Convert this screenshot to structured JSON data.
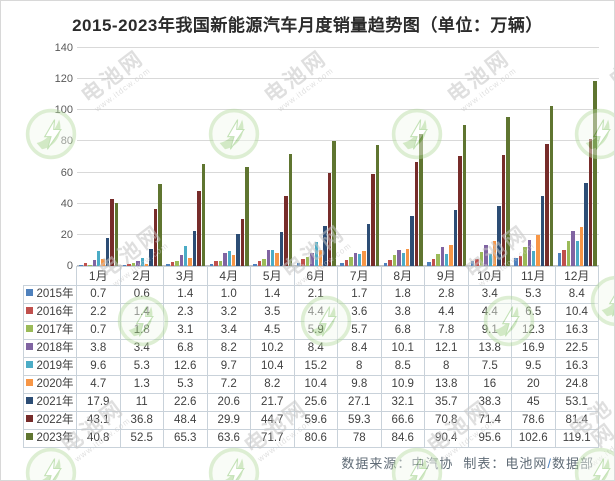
{
  "title": "2015-2023年我国新能源汽车月度销量趋势图（单位：万辆）",
  "watermark": {
    "brand": "电池网",
    "url": "www.itdcw.com"
  },
  "footer": {
    "source": "数据来源：中汽协",
    "maker": "制表：电池网",
    "slash": "/",
    "dept": "数据部"
  },
  "colors": {
    "grid": "#d9d9d9",
    "axis": "#bfbfbf",
    "table_border": "#c9d2da",
    "title_text": "#2b2b2b",
    "body_text": "#404040",
    "tick_text": "#595959",
    "footer_text": "#5f6b76",
    "footer_slash": "#4a7ebb",
    "watermark_gray": "#c6c6c6",
    "watermark_green": "#8cc63f"
  },
  "chart_data": {
    "type": "bar",
    "title": "2015-2023年我国新能源汽车月度销量趋势图（单位：万辆）",
    "unit": "万辆",
    "xlabel": "",
    "ylabel": "",
    "ylim": [
      0,
      140
    ],
    "yticks": [
      0,
      20,
      40,
      60,
      80,
      100,
      120,
      140
    ],
    "grid": true,
    "legend_position": "data-table-left",
    "categories": [
      "1月",
      "2月",
      "3月",
      "4月",
      "5月",
      "6月",
      "7月",
      "8月",
      "9月",
      "10月",
      "11月",
      "12月"
    ],
    "series": [
      {
        "name": "2015年",
        "color": "#4F81BD",
        "values": [
          0.7,
          0.6,
          1.4,
          1.0,
          1.4,
          2.1,
          1.7,
          1.8,
          2.8,
          3.4,
          5.3,
          8.4
        ],
        "display": [
          "0.7",
          "0.6",
          "1.4",
          "1.0",
          "1.4",
          "2.1",
          "1.7",
          "1.8",
          "2.8",
          "3.4",
          "5.3",
          "8.4"
        ]
      },
      {
        "name": "2016年",
        "color": "#C0504D",
        "values": [
          2.2,
          1.4,
          2.3,
          3.2,
          3.5,
          4.4,
          3.6,
          3.8,
          4.4,
          4.4,
          6.5,
          10.4
        ],
        "display": [
          "2.2",
          "1.4",
          "2.3",
          "3.2",
          "3.5",
          "4.4",
          "3.6",
          "3.8",
          "4.4",
          "4.4",
          "6.5",
          "10.4"
        ]
      },
      {
        "name": "2017年",
        "color": "#9BBB59",
        "values": [
          0.7,
          1.8,
          3.1,
          3.4,
          4.5,
          5.9,
          5.7,
          6.8,
          7.8,
          9.1,
          12.3,
          16.3
        ],
        "display": [
          "0.7",
          "1.8",
          "3.1",
          "3.4",
          "4.5",
          "5.9",
          "5.7",
          "6.8",
          "7.8",
          "9.1",
          "12.3",
          "16.3"
        ]
      },
      {
        "name": "2018年",
        "color": "#8064A2",
        "values": [
          3.8,
          3.4,
          6.8,
          8.2,
          10.2,
          8.4,
          8.4,
          10.1,
          12.1,
          13.8,
          16.9,
          22.5
        ],
        "display": [
          "3.8",
          "3.4",
          "6.8",
          "8.2",
          "10.2",
          "8.4",
          "8.4",
          "10.1",
          "12.1",
          "13.8",
          "16.9",
          "22.5"
        ]
      },
      {
        "name": "2019年",
        "color": "#4BACC6",
        "values": [
          9.6,
          5.3,
          12.6,
          9.7,
          10.4,
          15.2,
          8,
          8.5,
          8,
          7.5,
          9.5,
          16.3
        ],
        "display": [
          "9.6",
          "5.3",
          "12.6",
          "9.7",
          "10.4",
          "15.2",
          "8",
          "8.5",
          "8",
          "7.5",
          "9.5",
          "16.3"
        ]
      },
      {
        "name": "2020年",
        "color": "#F79646",
        "values": [
          4.7,
          1.3,
          5.3,
          7.2,
          8.2,
          10.4,
          9.8,
          10.9,
          13.8,
          16,
          20,
          24.8
        ],
        "display": [
          "4.7",
          "1.3",
          "5.3",
          "7.2",
          "8.2",
          "10.4",
          "9.8",
          "10.9",
          "13.8",
          "16",
          "20",
          "24.8"
        ]
      },
      {
        "name": "2021年",
        "color": "#2C4D75",
        "values": [
          17.9,
          11,
          22.6,
          20.6,
          21.7,
          25.6,
          27.1,
          32.1,
          35.7,
          38.3,
          45,
          53.1
        ],
        "display": [
          "17.9",
          "11",
          "22.6",
          "20.6",
          "21.7",
          "25.6",
          "27.1",
          "32.1",
          "35.7",
          "38.3",
          "45",
          "53.1"
        ]
      },
      {
        "name": "2022年",
        "color": "#772C2A",
        "values": [
          43.1,
          36.8,
          48.4,
          29.9,
          44.7,
          59.6,
          59.3,
          66.6,
          70.8,
          71.4,
          78.6,
          81.4
        ],
        "display": [
          "43.1",
          "36.8",
          "48.4",
          "29.9",
          "44.7",
          "59.6",
          "59.3",
          "66.6",
          "70.8",
          "71.4",
          "78.6",
          "81.4"
        ]
      },
      {
        "name": "2023年",
        "color": "#5F7530",
        "values": [
          40.8,
          52.5,
          65.3,
          63.6,
          71.7,
          80.6,
          78,
          84.6,
          90.4,
          95.6,
          102.6,
          119.1
        ],
        "display": [
          "40.8",
          "52.5",
          "65.3",
          "63.6",
          "71.7",
          "80.6",
          "78",
          "84.6",
          "90.4",
          "95.6",
          "102.6",
          "119.1"
        ]
      }
    ]
  }
}
